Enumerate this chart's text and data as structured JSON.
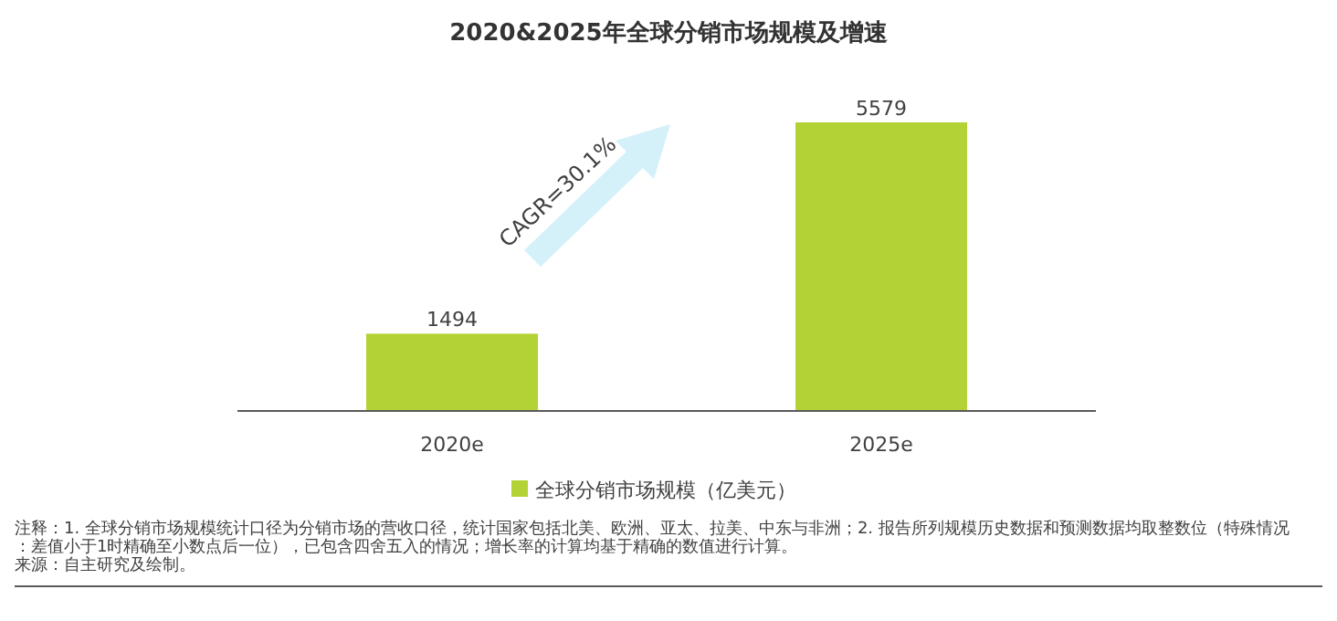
{
  "chart_data": {
    "type": "bar",
    "title": "2020&2025年全球分销市场规模及增速",
    "categories": [
      "2020e",
      "2025e"
    ],
    "series": [
      {
        "name": "全球分销市场规模（亿美元）",
        "color": "#b2d235",
        "values": [
          1494,
          5579
        ]
      }
    ],
    "data_labels": true,
    "legend": "bottom",
    "annotations": [
      "CAGR=30.1%",
      "注释：1. 全球分销市场规模统计口径为分销市场的营收口径，统计国家包括北美、欧洲、亚太、拉美、中东与非洲；2. 报告所列规模历史数据和预测数据均取整数位（特殊情况：差值小于1时精确至小数点后一位），已包含四舍五入的情况；增长率的计算均基于精确的数值进行计算。",
      "来源：自主研究及绘制。"
    ]
  }
}
